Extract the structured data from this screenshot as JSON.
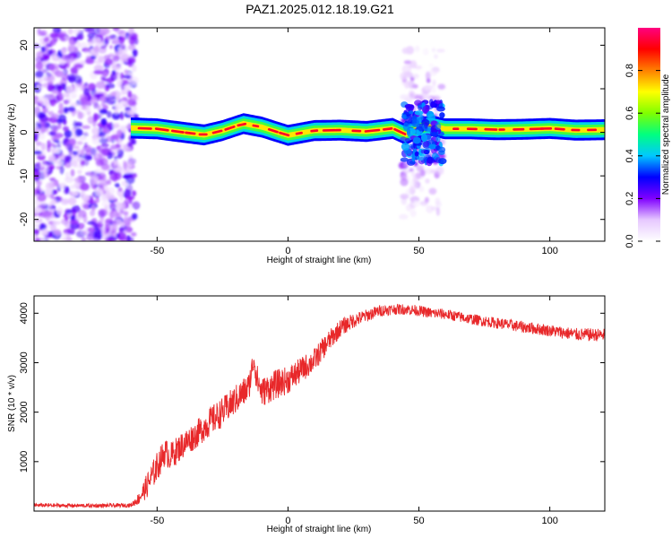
{
  "title": "PAZ1.2025.012.18.19.G21",
  "colors": {
    "snr_line": "#e8282a",
    "colormap": [
      "#ffffff",
      "#e6c8ff",
      "#8000ff",
      "#0000ff",
      "#00c8ff",
      "#00ff80",
      "#80ff00",
      "#ffff00",
      "#ff8000",
      "#ff0000",
      "#ff0080"
    ]
  },
  "chart_data": [
    {
      "type": "heatmap",
      "xlabel": "Height of straight line (km)",
      "ylabel": "Frequency (Hz)",
      "xlim": [
        -97,
        121
      ],
      "ylim": [
        -25,
        24
      ],
      "xticks": [
        -50,
        0,
        50,
        100
      ],
      "yticks": [
        -20,
        -10,
        0,
        10,
        20
      ],
      "ridge": {
        "x": [
          -60,
          -50,
          -40,
          -32,
          -25,
          -17,
          -10,
          0,
          10,
          20,
          30,
          40,
          45,
          50,
          55,
          60,
          70,
          80,
          90,
          100,
          110,
          121
        ],
        "y": [
          1.0,
          0.8,
          0.0,
          -0.6,
          0.4,
          2.0,
          1.2,
          -0.7,
          0.4,
          0.5,
          0.2,
          0.9,
          -0.5,
          1.0,
          1.5,
          0.8,
          0.8,
          0.6,
          0.7,
          0.9,
          0.5,
          0.6
        ]
      },
      "noise_regions": [
        {
          "x": [
            -97,
            -58
          ],
          "y": [
            -25,
            24
          ],
          "level": 0.2
        },
        {
          "x": [
            44,
            59
          ],
          "y": [
            -20,
            20
          ],
          "level": 0.18
        }
      ],
      "colorbar": {
        "label": "Normalized spectral amplitude",
        "lim": [
          0,
          1
        ],
        "ticks": [
          0.0,
          0.2,
          0.4,
          0.6,
          0.8
        ]
      }
    },
    {
      "type": "line",
      "xlabel": "Height of straight line (km)",
      "ylabel": "SNR (10 * v/v)",
      "xlim": [
        -97,
        121
      ],
      "ylim": [
        0,
        4350
      ],
      "xticks": [
        -50,
        0,
        50,
        100
      ],
      "yticks": [
        1000,
        2000,
        3000,
        4000
      ],
      "series": [
        {
          "x": [
            -97,
            -80,
            -70,
            -60,
            -57,
            -54,
            -50,
            -47,
            -45,
            -40,
            -35,
            -30,
            -25,
            -20,
            -15,
            -13,
            -12,
            -10,
            -5,
            0,
            5,
            10,
            15,
            20,
            25,
            30,
            35,
            40,
            45,
            50,
            55,
            60,
            70,
            80,
            90,
            100,
            110,
            121
          ],
          "y": [
            120,
            110,
            110,
            120,
            250,
            500,
            900,
            1200,
            1100,
            1350,
            1550,
            1800,
            2000,
            2250,
            2500,
            3100,
            2700,
            2400,
            2550,
            2650,
            2850,
            3050,
            3400,
            3700,
            3850,
            3950,
            4050,
            4080,
            4080,
            4050,
            4000,
            3980,
            3880,
            3800,
            3720,
            3650,
            3570,
            3560
          ],
          "noise": [
            40,
            40,
            40,
            40,
            120,
            250,
            300,
            280,
            280,
            280,
            280,
            300,
            300,
            300,
            300,
            250,
            300,
            300,
            300,
            280,
            260,
            240,
            220,
            180,
            150,
            130,
            120,
            110,
            110,
            110,
            110,
            110,
            110,
            110,
            120,
            120,
            130,
            130
          ]
        }
      ]
    }
  ]
}
